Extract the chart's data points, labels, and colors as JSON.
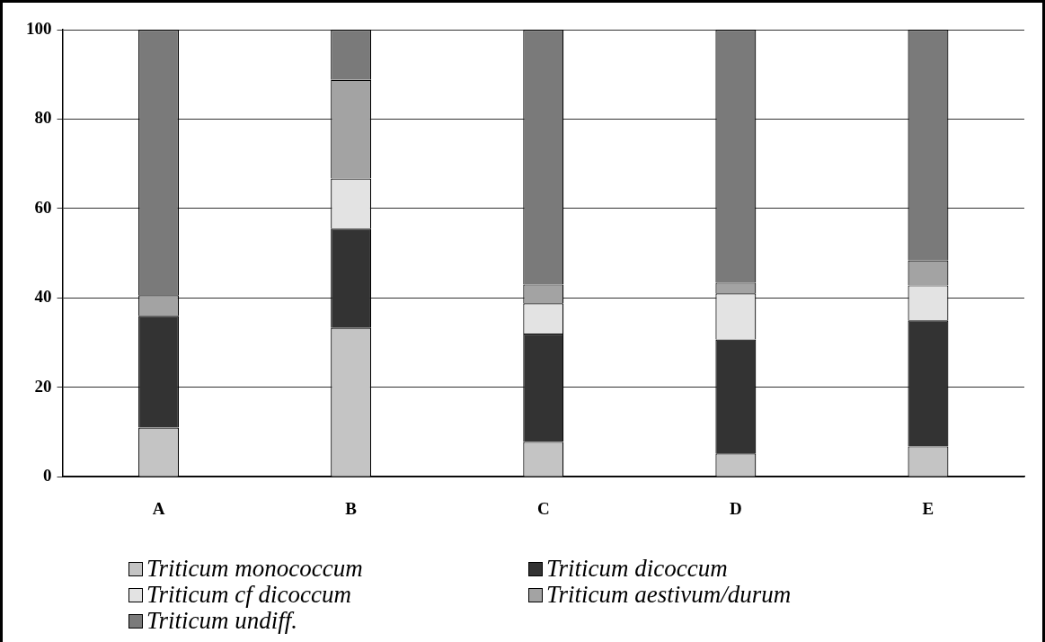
{
  "chart_data": {
    "type": "bar",
    "stacked": true,
    "categories": [
      "A",
      "B",
      "C",
      "D",
      "E"
    ],
    "series": [
      {
        "name": "Triticum monococcum",
        "color": "#c4c4c4",
        "values": [
          11,
          33.3,
          7.8,
          5.2,
          6.8
        ]
      },
      {
        "name": "Triticum dicoccum",
        "color": "#333333",
        "values": [
          25,
          22.2,
          24.2,
          25.5,
          28.2
        ]
      },
      {
        "name": "Triticum cf dicoccum",
        "color": "#e3e3e3",
        "values": [
          0,
          11.2,
          6.8,
          10.3,
          7.8
        ]
      },
      {
        "name": "Triticum aestivum/durum",
        "color": "#a3a3a3",
        "values": [
          4.6,
          22.1,
          4.2,
          2.4,
          5.6
        ]
      },
      {
        "name": "Triticum undiff.",
        "color": "#7a7a7a",
        "values": [
          59.4,
          11.2,
          57,
          56.6,
          51.6
        ]
      }
    ],
    "ylim": [
      0,
      100
    ],
    "yticks": [
      0,
      20,
      40,
      60,
      80,
      100
    ],
    "grid": "y",
    "legend": "bottom"
  }
}
